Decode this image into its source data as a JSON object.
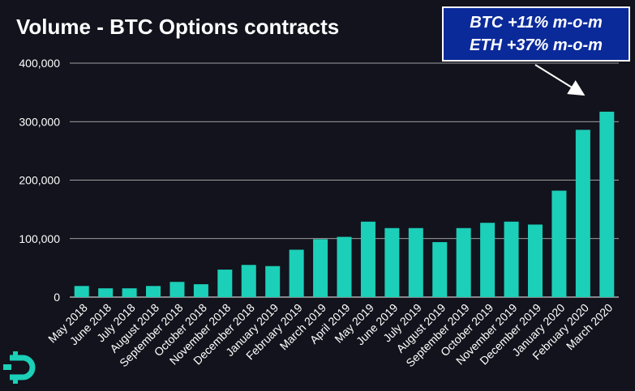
{
  "chart_data": {
    "type": "bar",
    "title": "Volume - BTC Options contracts",
    "categories": [
      "May 2018",
      "June 2018",
      "July 2018",
      "August 2018",
      "September 2018",
      "October 2018",
      "November 2018",
      "December 2018",
      "January 2019",
      "February 2019",
      "March 2019",
      "April 2019",
      "May 2019",
      "June 2019",
      "July 2019",
      "August 2019",
      "September 2019",
      "October 2019",
      "November 2019",
      "December 2019",
      "January 2020",
      "February 2020",
      "March 2020"
    ],
    "values": [
      19000,
      15000,
      15000,
      19000,
      26000,
      22000,
      47000,
      55000,
      53000,
      81000,
      99000,
      103000,
      129000,
      118000,
      118000,
      94000,
      118000,
      127000,
      129000,
      124000,
      182000,
      286000,
      317000
    ],
    "yticks": [
      "0",
      "100,000",
      "200,000",
      "300,000",
      "400,000"
    ],
    "ylim": [
      0,
      400000
    ],
    "grid": true,
    "bar_color": "#1ccfb8"
  },
  "annotation": {
    "line1": "BTC +11% m-o-m",
    "line2": "ETH +37% m-o-m"
  },
  "colors": {
    "background": "#12131c",
    "callout_bg": "#0a2a9a",
    "logo": "#1ccfb8"
  },
  "logo_icon": "bitcoin-logo-icon"
}
